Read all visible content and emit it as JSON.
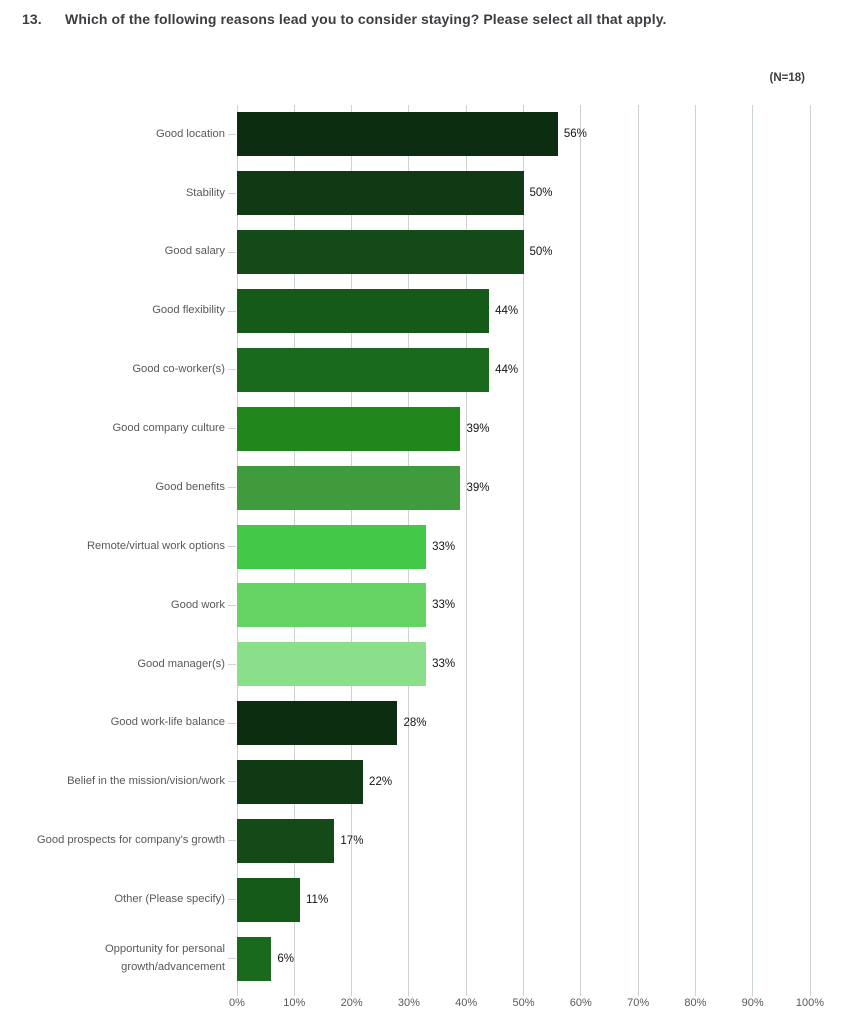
{
  "header": {
    "question_number": "13.",
    "question_text": "Which of the following reasons lead you to consider staying? Please select all that apply.",
    "sample_size": "(N=18)"
  },
  "chart_data": {
    "type": "bar",
    "orientation": "horizontal",
    "title": "Which of the following reasons lead you to consider staying? Please select all that apply.",
    "sample_size_note": "(N=18)",
    "categories": [
      "Good location",
      "Stability",
      "Good salary",
      "Good flexibility",
      "Good co-worker(s)",
      "Good company culture",
      "Good benefits",
      "Remote/virtual work options",
      "Good work",
      "Good manager(s)",
      "Good work-life balance",
      "Belief in the mission/vision/work",
      "Good prospects for company's growth",
      "Other (Please specify)",
      "Opportunity for personal growth/advancement"
    ],
    "values": [
      56,
      50,
      50,
      44,
      44,
      39,
      39,
      33,
      33,
      33,
      28,
      22,
      17,
      11,
      6
    ],
    "value_labels": [
      "56%",
      "50%",
      "50%",
      "44%",
      "44%",
      "39%",
      "39%",
      "33%",
      "33%",
      "33%",
      "28%",
      "22%",
      "17%",
      "11%",
      "6%"
    ],
    "bar_colors": [
      "#0c2d10",
      "#0f3a13",
      "#134a17",
      "#165a1a",
      "#1a6a1d",
      "#21861b",
      "#3f9b3b",
      "#43c947",
      "#65d464",
      "#8bdf8a",
      "#0c2d10",
      "#0f3a13",
      "#134a17",
      "#165a1a",
      "#1a6a1d"
    ],
    "x_ticks": [
      "0%",
      "10%",
      "20%",
      "30%",
      "40%",
      "50%",
      "60%",
      "70%",
      "80%",
      "90%",
      "100%"
    ],
    "xlim": [
      0,
      100
    ],
    "xlabel": "",
    "ylabel": "",
    "grid": true,
    "grid_color": "#ccd3d7",
    "category_label_color": "#56595d",
    "value_label_color": "#141414",
    "legend": "none"
  }
}
